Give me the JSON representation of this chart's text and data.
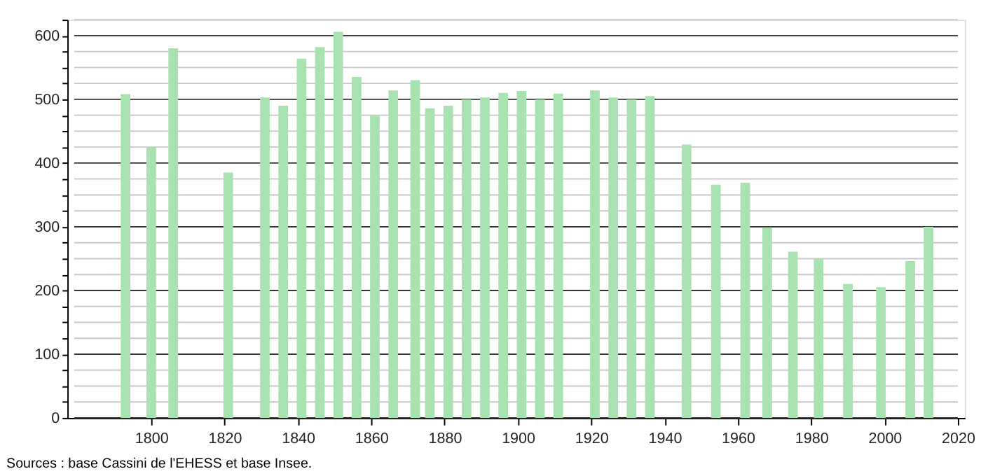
{
  "chart_data": {
    "type": "bar",
    "x": [
      1793,
      1800,
      1806,
      1821,
      1831,
      1836,
      1841,
      1846,
      1851,
      1856,
      1861,
      1866,
      1872,
      1876,
      1881,
      1886,
      1891,
      1896,
      1901,
      1906,
      1911,
      1921,
      1926,
      1931,
      1936,
      1946,
      1954,
      1962,
      1968,
      1975,
      1982,
      1990,
      1999,
      2007,
      2012
    ],
    "values": [
      508,
      425,
      580,
      385,
      503,
      490,
      564,
      582,
      606,
      535,
      475,
      514,
      530,
      486,
      490,
      500,
      503,
      510,
      513,
      500,
      509,
      514,
      503,
      500,
      505,
      429,
      366,
      369,
      299,
      261,
      250,
      210,
      205,
      246,
      300
    ],
    "color": "#a8e2b0",
    "xlim": [
      1779,
      2020
    ],
    "xticks": [
      1800,
      1820,
      1840,
      1860,
      1880,
      1900,
      1920,
      1940,
      1960,
      1980,
      2000,
      2020
    ],
    "ylim": [
      0,
      625
    ],
    "yticks": [
      0,
      {
        "value": 25,
        "label": null
      },
      {
        "value": 50,
        "label": null
      },
      {
        "value": 75,
        "label": null
      },
      100,
      {
        "value": 125,
        "label": null
      },
      {
        "value": 150,
        "label": null
      },
      {
        "value": 175,
        "label": null
      },
      200,
      {
        "value": 225,
        "label": null
      },
      {
        "value": 250,
        "label": null
      },
      {
        "value": 275,
        "label": null
      },
      300,
      {
        "value": 325,
        "label": null
      },
      {
        "value": 350,
        "label": null
      },
      {
        "value": 375,
        "label": null
      },
      400,
      {
        "value": 425,
        "label": null
      },
      {
        "value": 450,
        "label": null
      },
      {
        "value": 475,
        "label": null
      },
      500,
      {
        "value": 525,
        "label": null
      },
      {
        "value": 550,
        "label": null
      },
      {
        "value": 575,
        "label": null
      },
      600,
      {
        "value": 625,
        "label": null
      }
    ],
    "grid": "y",
    "annotations": [
      "Sources : base Cassini de l'EHESS et base Insee."
    ]
  }
}
